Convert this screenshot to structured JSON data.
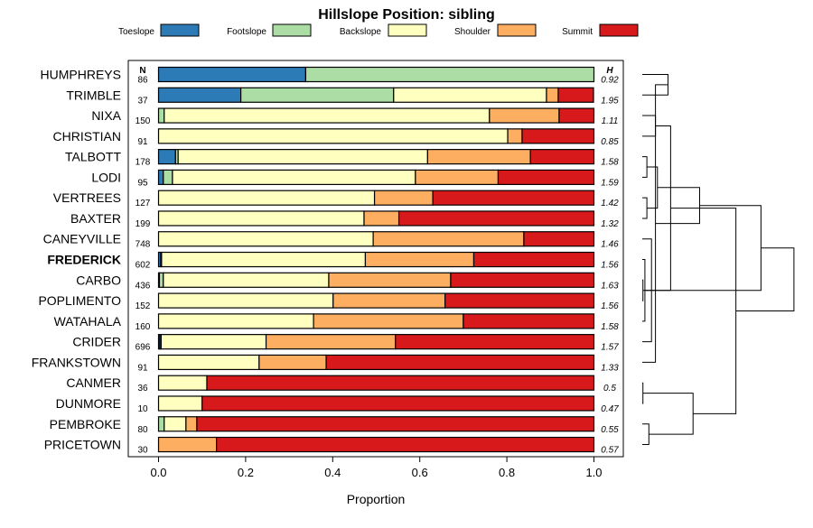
{
  "chart_data": {
    "type": "stacked-bar",
    "title": "Hillslope Position: sibling",
    "xlabel": "Proportion",
    "xlim": [
      0,
      1
    ],
    "xticks": [
      "0.0",
      "0.2",
      "0.4",
      "0.6",
      "0.8",
      "1.0"
    ],
    "n_header": "N",
    "h_header": "H",
    "highlight": "FREDERICK",
    "legend": [
      {
        "name": "Toeslope",
        "color": "#2c7bb6"
      },
      {
        "name": "Footslope",
        "color": "#abdda4"
      },
      {
        "name": "Backslope",
        "color": "#ffffbf"
      },
      {
        "name": "Shoulder",
        "color": "#fdae61"
      },
      {
        "name": "Summit",
        "color": "#d7191c"
      }
    ],
    "rows": [
      {
        "label": "HUMPHREYS",
        "n": "86",
        "h": "0.92",
        "values": [
          0.338,
          0.662,
          0,
          0,
          0
        ]
      },
      {
        "label": "TRIMBLE",
        "n": "37",
        "h": "1.95",
        "values": [
          0.189,
          0.351,
          0.351,
          0.027,
          0.081
        ]
      },
      {
        "label": "NIXA",
        "n": "150",
        "h": "1.11",
        "values": [
          0,
          0.013,
          0.747,
          0.16,
          0.08
        ]
      },
      {
        "label": "CHRISTIAN",
        "n": "91",
        "h": "0.85",
        "values": [
          0,
          0,
          0.802,
          0.033,
          0.165
        ]
      },
      {
        "label": "TALBOTT",
        "n": "178",
        "h": "1.58",
        "values": [
          0.039,
          0.006,
          0.573,
          0.236,
          0.146
        ]
      },
      {
        "label": "LODI",
        "n": "95",
        "h": "1.59",
        "values": [
          0.011,
          0.021,
          0.558,
          0.19,
          0.22
        ]
      },
      {
        "label": "VERTREES",
        "n": "127",
        "h": "1.42",
        "values": [
          0,
          0,
          0.496,
          0.134,
          0.37
        ]
      },
      {
        "label": "BAXTER",
        "n": "199",
        "h": "1.32",
        "values": [
          0,
          0,
          0.472,
          0.08,
          0.448
        ]
      },
      {
        "label": "CANEYVILLE",
        "n": "748",
        "h": "1.46",
        "values": [
          0,
          0,
          0.493,
          0.346,
          0.161
        ]
      },
      {
        "label": "FREDERICK",
        "n": "602",
        "h": "1.56",
        "values": [
          0.005,
          0.002,
          0.468,
          0.249,
          0.276
        ]
      },
      {
        "label": "CARBO",
        "n": "436",
        "h": "1.63",
        "values": [
          0.002,
          0.009,
          0.38,
          0.28,
          0.329
        ]
      },
      {
        "label": "POPLIMENTO",
        "n": "152",
        "h": "1.56",
        "values": [
          0,
          0,
          0.401,
          0.257,
          0.342
        ]
      },
      {
        "label": "WATAHALA",
        "n": "160",
        "h": "1.58",
        "values": [
          0,
          0,
          0.356,
          0.344,
          0.3
        ]
      },
      {
        "label": "CRIDER",
        "n": "696",
        "h": "1.57",
        "values": [
          0.003,
          0.003,
          0.241,
          0.297,
          0.456
        ]
      },
      {
        "label": "FRANKSTOWN",
        "n": "91",
        "h": "1.33",
        "values": [
          0,
          0,
          0.231,
          0.154,
          0.615
        ]
      },
      {
        "label": "CANMER",
        "n": "36",
        "h": "0.5",
        "values": [
          0,
          0,
          0.111,
          0,
          0.889
        ]
      },
      {
        "label": "DUNMORE",
        "n": "10",
        "h": "0.47",
        "values": [
          0,
          0,
          0.1,
          0,
          0.9
        ]
      },
      {
        "label": "PEMBROKE",
        "n": "80",
        "h": "0.55",
        "values": [
          0,
          0.013,
          0.05,
          0.025,
          0.912
        ]
      },
      {
        "label": "PRICETOWN",
        "n": "30",
        "h": "0.57",
        "values": [
          0,
          0,
          0,
          0.133,
          0.867
        ]
      }
    ],
    "dendrogram": {
      "merges": [
        {
          "a": 0,
          "b": 1,
          "height": 0.39
        },
        {
          "a": 2,
          "b": 3,
          "height": 0.2
        },
        {
          "a": 4,
          "b": 5,
          "height": 0.07
        },
        {
          "a": 6,
          "b": 7,
          "height": 0.07
        },
        {
          "a": 10,
          "b": 11,
          "height": 0.01
        },
        {
          "a": 9,
          "b": 12,
          "height": 0.04
        },
        {
          "a": 15,
          "b": 16,
          "height": 0.01
        },
        {
          "a": 17,
          "b": 18,
          "height": 0.1
        },
        {
          "a": 8,
          "b": 13,
          "height": 0.14
        },
        {
          "a": 14,
          "b": 19,
          "height": 0.2
        },
        {
          "a": 21,
          "b": 22,
          "height": 0.23
        },
        {
          "a": 20,
          "b": 23,
          "height": 0.43
        },
        {
          "a": 25,
          "b": 26,
          "height": 0.77
        },
        {
          "a": 28,
          "b": 29,
          "height": 0.87
        },
        {
          "a": 24,
          "b": 27,
          "height": 1.33
        },
        {
          "a": 30,
          "b": 31,
          "height": 1.42
        },
        {
          "a": 32,
          "b": 33,
          "height": 1.8
        },
        {
          "a": 34,
          "b": 35,
          "height": 2.3
        }
      ]
    }
  }
}
